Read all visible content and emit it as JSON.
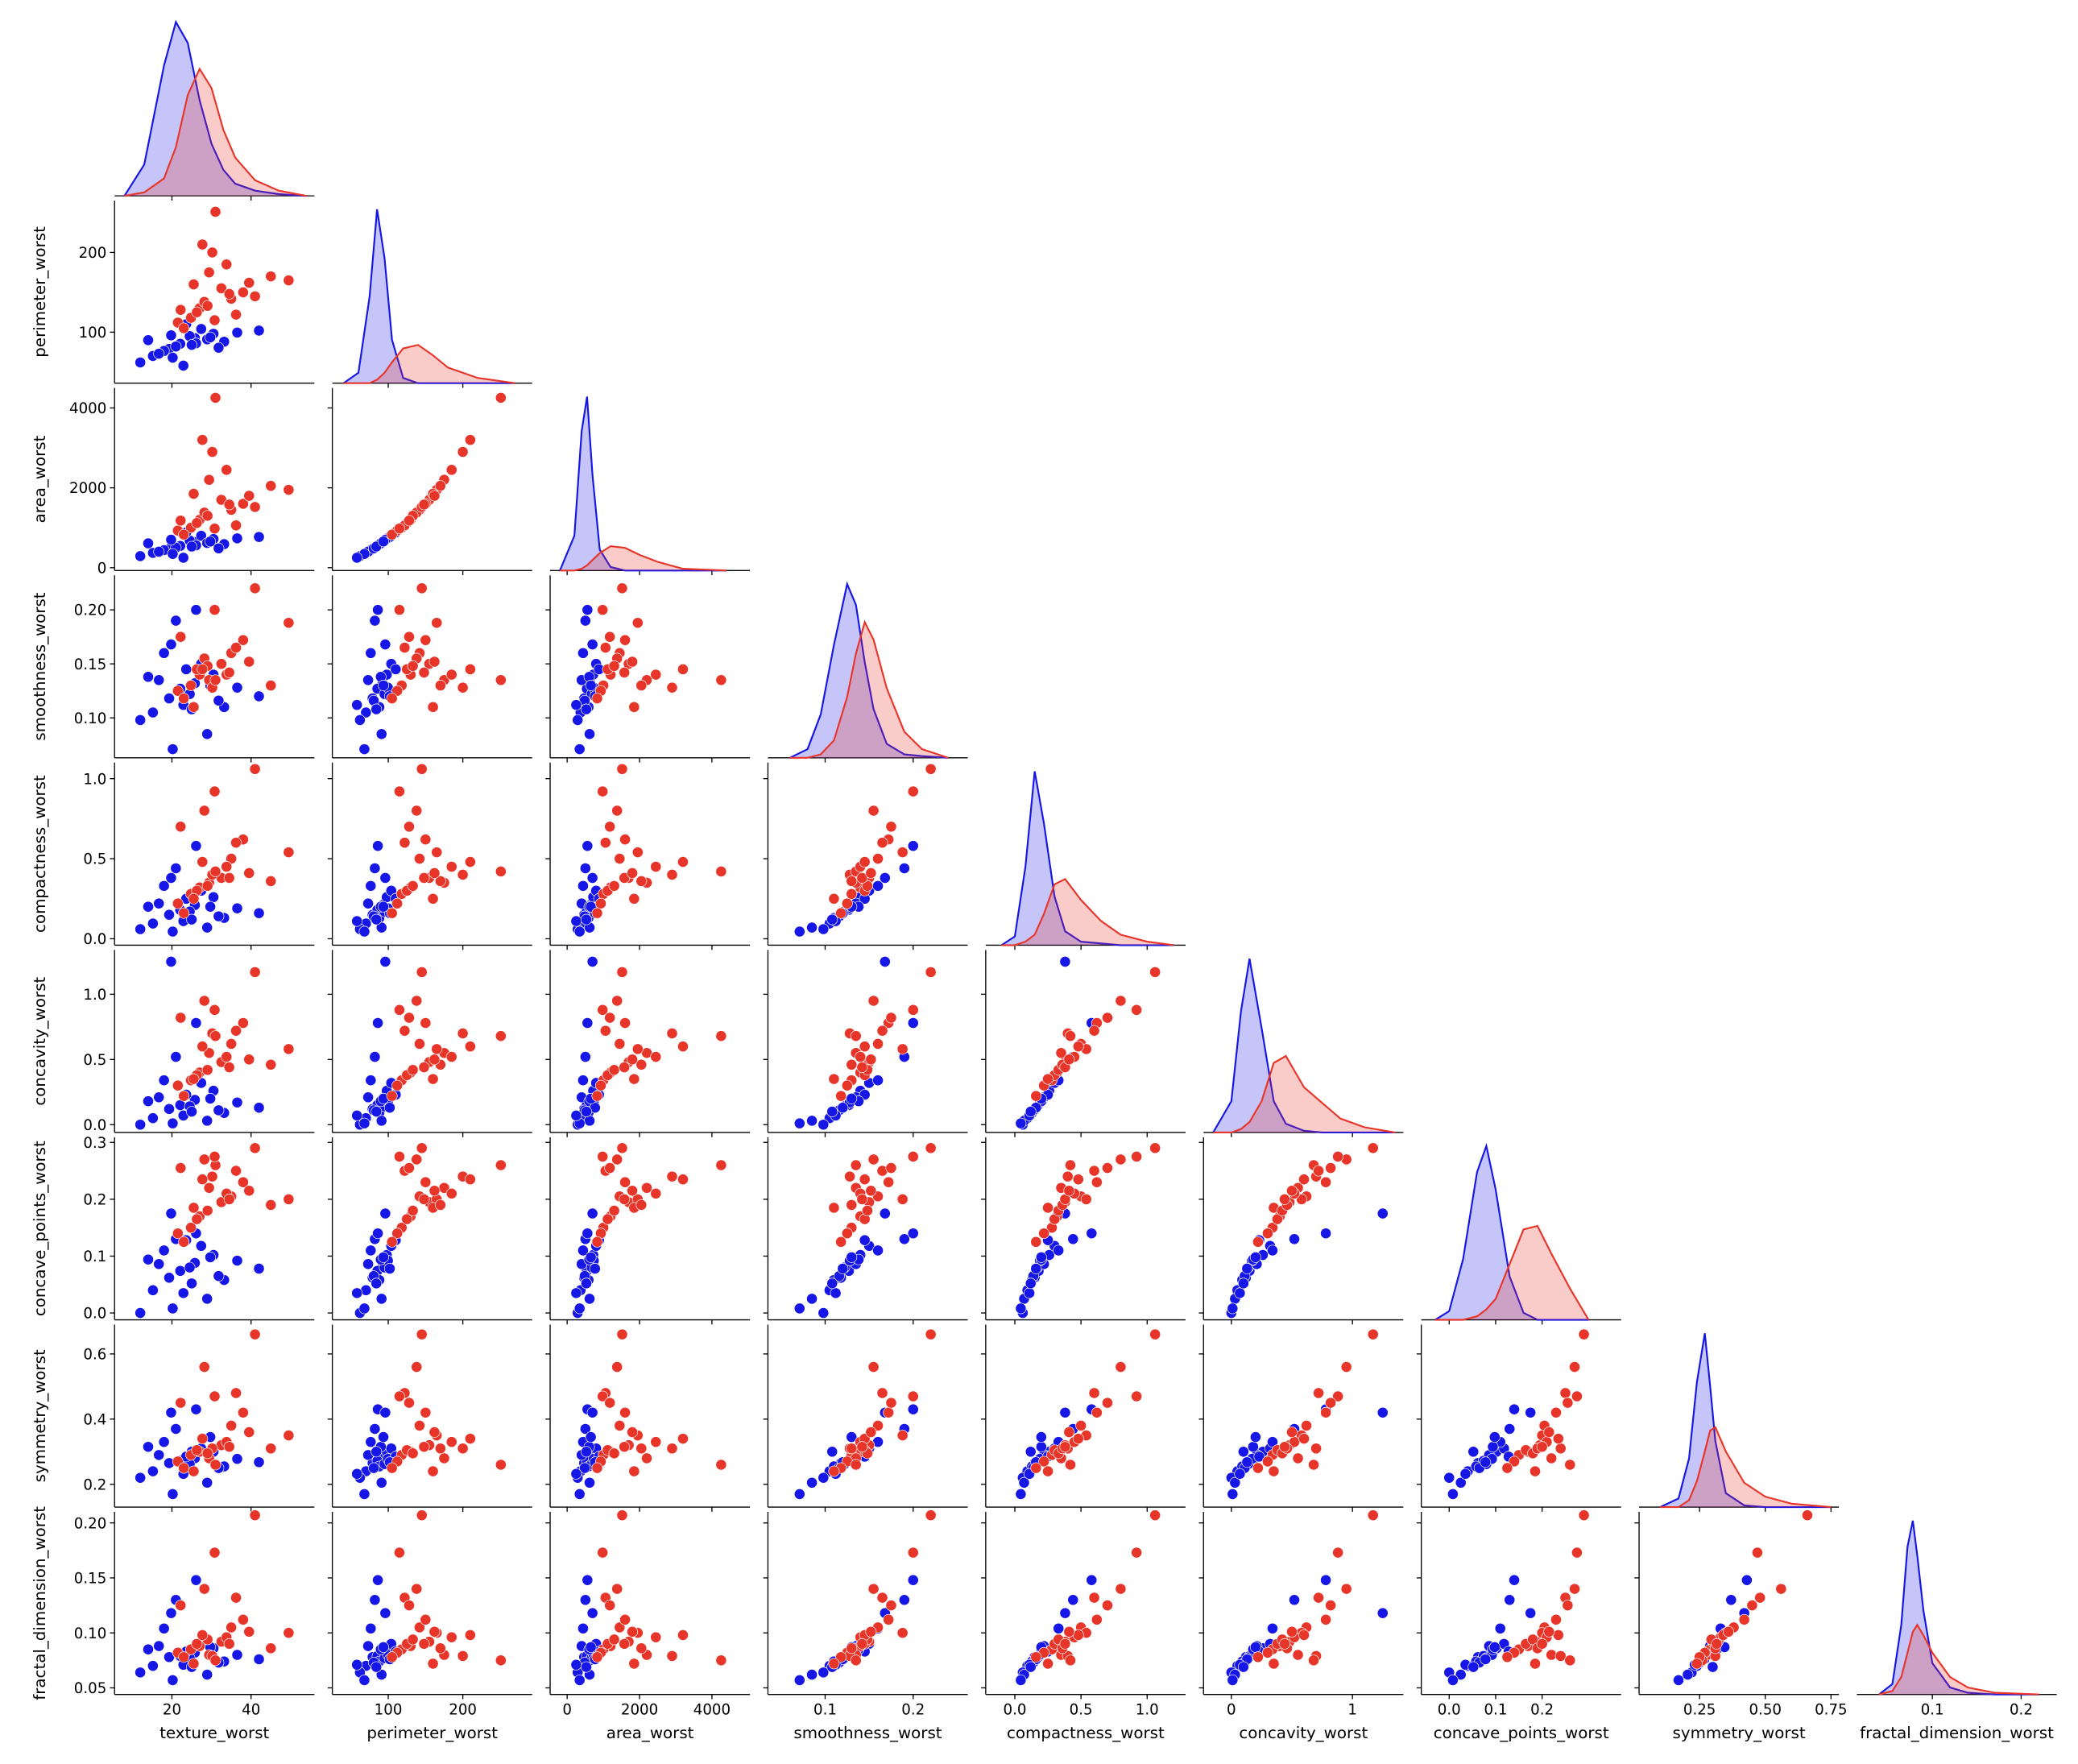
{
  "chart_data": {
    "type": "pairplot",
    "variables": [
      {
        "name": "texture_worst",
        "xlim": [
          5.5,
          56
        ],
        "xticks": [
          20,
          40
        ],
        "kde_x": [
          8,
          13,
          18,
          21,
          24,
          27,
          30,
          33,
          36,
          41,
          47,
          54
        ],
        "kde_ylim": [
          0,
          105
        ]
      },
      {
        "name": "perimeter_worst",
        "xlim": [
          25,
          293
        ],
        "xticks": [
          100,
          200
        ],
        "ylim": [
          36,
          265
        ],
        "yticks": [
          100,
          200
        ],
        "kde_x": [
          40,
          60,
          75,
          85,
          95,
          105,
          120,
          140,
          160,
          180,
          220,
          270
        ],
        "kde_ylim": [
          0,
          105
        ]
      },
      {
        "name": "area_worst",
        "xlim": [
          -470,
          5050
        ],
        "xticks": [
          0,
          2000,
          4000
        ],
        "ylim": [
          -70,
          4500
        ],
        "yticks": [
          0,
          2000,
          4000
        ],
        "kde_x": [
          -200,
          200,
          400,
          550,
          700,
          900,
          1200,
          1600,
          2000,
          2500,
          3200,
          4400
        ],
        "kde_ylim": [
          0,
          105
        ]
      },
      {
        "name": "smoothness_worst",
        "xlim": [
          0.035,
          0.262
        ],
        "xticks": [
          0.1,
          0.2
        ],
        "ylim": [
          0.063,
          0.232
        ],
        "yticks": [
          {
            "value": 0.1,
            "label": "0.10"
          },
          0.15,
          {
            "value": 0.2,
            "label": "0.20"
          }
        ],
        "kde_x": [
          0.06,
          0.08,
          0.095,
          0.11,
          0.125,
          0.135,
          0.145,
          0.155,
          0.17,
          0.19,
          0.21,
          0.24
        ],
        "kde_ylim": [
          0,
          105
        ]
      },
      {
        "name": "compactness_worst",
        "xlim": [
          -0.22,
          1.29
        ],
        "xticks": [
          {
            "value": 0,
            "label": "0.0"
          },
          0.5,
          {
            "value": 1,
            "label": "1.0"
          }
        ],
        "ylim": [
          -0.04,
          1.1
        ],
        "yticks": [
          {
            "value": 0,
            "label": "0.0"
          },
          0.5,
          {
            "value": 1,
            "label": "1.0"
          }
        ],
        "kde_x": [
          -0.1,
          0.0,
          0.08,
          0.15,
          0.22,
          0.3,
          0.38,
          0.5,
          0.65,
          0.8,
          1.0,
          1.2
        ],
        "kde_ylim": [
          0,
          105
        ]
      },
      {
        "name": "concavity_worst",
        "xlim": [
          -0.23,
          1.42
        ],
        "xticks": [
          0,
          1
        ],
        "ylim": [
          -0.06,
          1.34
        ],
        "yticks": [
          {
            "value": 0,
            "label": "0.0"
          },
          0.5,
          {
            "value": 1,
            "label": "1.0"
          }
        ],
        "kde_x": [
          -0.15,
          0.0,
          0.08,
          0.15,
          0.25,
          0.35,
          0.45,
          0.6,
          0.75,
          0.9,
          1.1,
          1.35
        ],
        "kde_ylim": [
          0,
          105
        ]
      },
      {
        "name": "concave_points_worst",
        "xlim": [
          -0.06,
          0.37
        ],
        "xticks": [
          {
            "value": 0,
            "label": "0.0"
          },
          0.1,
          0.2
        ],
        "ylim": [
          -0.012,
          0.309
        ],
        "yticks": [
          {
            "value": 0,
            "label": "0.0"
          },
          0.1,
          0.2,
          0.3
        ],
        "kde_x": [
          -0.03,
          0.0,
          0.03,
          0.06,
          0.08,
          0.1,
          0.13,
          0.16,
          0.19,
          0.22,
          0.26,
          0.3
        ],
        "kde_ylim": [
          0,
          105
        ]
      },
      {
        "name": "symmetry_worst",
        "xlim": [
          0.02,
          0.78
        ],
        "xticks": [
          0.25,
          {
            "value": 0.5,
            "label": "0.50"
          },
          0.75
        ],
        "ylim": [
          0.13,
          0.69
        ],
        "yticks": [
          0.2,
          0.4,
          0.6
        ],
        "kde_x": [
          0.1,
          0.17,
          0.21,
          0.24,
          0.27,
          0.29,
          0.31,
          0.35,
          0.42,
          0.5,
          0.6,
          0.75
        ],
        "kde_ylim": [
          0,
          105
        ]
      },
      {
        "name": "fractal_dimension_worst",
        "xlim": [
          0.015,
          0.24
        ],
        "xticks": [
          0.1,
          0.2
        ],
        "ylim": [
          0.044,
          0.21
        ],
        "yticks": [
          0.05,
          {
            "value": 0.1,
            "label": "0.10"
          },
          0.15,
          {
            "value": 0.2,
            "label": "0.20"
          }
        ],
        "kde_x": [
          0.04,
          0.055,
          0.065,
          0.072,
          0.078,
          0.083,
          0.09,
          0.1,
          0.12,
          0.14,
          0.17,
          0.22
        ],
        "kde_ylim": [
          0,
          105
        ]
      }
    ],
    "series": [
      {
        "color": "#1616e6",
        "samples": [
          [
            19.3,
            79.0,
            470,
            0.118,
            0.15,
            0.12,
            0.062,
            0.265,
            0.078
          ],
          [
            25.8,
            92.5,
            640,
            0.132,
            0.21,
            0.19,
            0.088,
            0.28,
            0.082
          ],
          [
            15.2,
            70.1,
            370,
            0.105,
            0.095,
            0.05,
            0.04,
            0.24,
            0.07
          ],
          [
            30.5,
            98.0,
            720,
            0.14,
            0.26,
            0.26,
            0.102,
            0.3,
            0.086
          ],
          [
            22.1,
            85.4,
            545,
            0.127,
            0.18,
            0.15,
            0.074,
            0.272,
            0.079
          ],
          [
            12.0,
            62.0,
            290,
            0.098,
            0.06,
            0.0,
            0.0,
            0.22,
            0.064
          ],
          [
            27.4,
            104.0,
            800,
            0.15,
            0.3,
            0.32,
            0.118,
            0.31,
            0.09
          ],
          [
            33.2,
            88.0,
            590,
            0.11,
            0.13,
            0.09,
            0.058,
            0.255,
            0.074
          ],
          [
            18.0,
            76.5,
            440,
            0.16,
            0.33,
            0.34,
            0.11,
            0.33,
            0.104
          ],
          [
            24.5,
            95.0,
            680,
            0.122,
            0.17,
            0.14,
            0.08,
            0.262,
            0.077
          ],
          [
            21.0,
            82.0,
            505,
            0.19,
            0.44,
            0.52,
            0.13,
            0.37,
            0.13
          ],
          [
            28.9,
            91.0,
            620,
            0.085,
            0.07,
            0.03,
            0.025,
            0.205,
            0.062
          ],
          [
            16.7,
            73.0,
            400,
            0.135,
            0.22,
            0.21,
            0.086,
            0.29,
            0.088
          ],
          [
            36.5,
            99.5,
            735,
            0.128,
            0.19,
            0.17,
            0.092,
            0.278,
            0.08
          ],
          [
            23.6,
            110.0,
            880,
            0.145,
            0.25,
            0.23,
            0.128,
            0.285,
            0.083
          ],
          [
            20.2,
            68.0,
            345,
            0.071,
            0.045,
            0.01,
            0.008,
            0.17,
            0.057
          ],
          [
            26.1,
            86.0,
            560,
            0.2,
            0.58,
            0.78,
            0.14,
            0.43,
            0.148
          ],
          [
            31.8,
            80.5,
            485,
            0.116,
            0.14,
            0.11,
            0.065,
            0.25,
            0.073
          ],
          [
            14.0,
            90.0,
            610,
            0.138,
            0.2,
            0.18,
            0.094,
            0.315,
            0.085
          ],
          [
            42.0,
            102.0,
            770,
            0.12,
            0.16,
            0.13,
            0.078,
            0.268,
            0.076
          ],
          [
            22.9,
            58.0,
            250,
            0.112,
            0.11,
            0.07,
            0.035,
            0.232,
            0.071
          ],
          [
            19.8,
            96.0,
            700,
            0.168,
            0.38,
            1.25,
            0.175,
            0.42,
            0.118
          ],
          [
            25.0,
            84.0,
            530,
            0.108,
            0.12,
            0.1,
            0.052,
            0.3,
            0.069
          ],
          [
            29.7,
            93.5,
            655,
            0.13,
            0.2,
            0.2,
            0.098,
            0.345,
            0.087
          ]
        ],
        "kde": [
          [
            0,
            18,
            75,
            100,
            88,
            55,
            30,
            15,
            7,
            3,
            1,
            0
          ],
          [
            0,
            6,
            50,
            100,
            72,
            25,
            3,
            0,
            0,
            0,
            0,
            0
          ],
          [
            0,
            20,
            80,
            100,
            55,
            12,
            2,
            0,
            0,
            0,
            0,
            0
          ],
          [
            0,
            5,
            25,
            65,
            100,
            88,
            55,
            28,
            8,
            2,
            1,
            0
          ],
          [
            0,
            5,
            45,
            100,
            70,
            28,
            8,
            2,
            1,
            0,
            0,
            0
          ],
          [
            0,
            18,
            70,
            100,
            60,
            18,
            5,
            1,
            0,
            0,
            0,
            0
          ],
          [
            0,
            5,
            35,
            85,
            100,
            75,
            25,
            4,
            0,
            0,
            0,
            0
          ],
          [
            0,
            5,
            28,
            72,
            100,
            70,
            38,
            8,
            1,
            0,
            0,
            0
          ],
          [
            0,
            6,
            40,
            85,
            100,
            80,
            48,
            18,
            4,
            1,
            0,
            0
          ]
        ]
      },
      {
        "color": "#e8352a",
        "samples": [
          [
            27.0,
            130.0,
            1200,
            0.14,
            0.32,
            0.4,
            0.17,
            0.3,
            0.088
          ],
          [
            32.5,
            155.0,
            1700,
            0.15,
            0.38,
            0.48,
            0.195,
            0.32,
            0.092
          ],
          [
            24.8,
            118.0,
            1000,
            0.13,
            0.28,
            0.34,
            0.15,
            0.29,
            0.085
          ],
          [
            29.4,
            175.0,
            2200,
            0.135,
            0.35,
            0.55,
            0.22,
            0.28,
            0.08
          ],
          [
            35.0,
            142.0,
            1450,
            0.16,
            0.5,
            0.62,
            0.205,
            0.38,
            0.105
          ],
          [
            21.5,
            112.0,
            930,
            0.125,
            0.22,
            0.3,
            0.14,
            0.27,
            0.082
          ],
          [
            30.2,
            200.0,
            2900,
            0.128,
            0.4,
            0.7,
            0.24,
            0.31,
            0.079
          ],
          [
            38.0,
            150.0,
            1600,
            0.172,
            0.62,
            0.78,
            0.23,
            0.42,
            0.112
          ],
          [
            26.3,
            125.0,
            1120,
            0.145,
            0.3,
            0.38,
            0.165,
            0.305,
            0.09
          ],
          [
            31.0,
            251.0,
            4254,
            0.135,
            0.42,
            0.68,
            0.26,
            0.26,
            0.075
          ],
          [
            49.5,
            165.0,
            1950,
            0.188,
            0.54,
            0.58,
            0.2,
            0.35,
            0.1
          ],
          [
            28.2,
            138.0,
            1380,
            0.155,
            0.8,
            0.95,
            0.27,
            0.56,
            0.14
          ],
          [
            23.0,
            105.0,
            830,
            0.118,
            0.16,
            0.22,
            0.125,
            0.25,
            0.078
          ],
          [
            33.8,
            185.0,
            2450,
            0.14,
            0.45,
            0.52,
            0.21,
            0.33,
            0.096
          ],
          [
            41.0,
            145.0,
            1520,
            0.22,
            1.06,
            1.17,
            0.29,
            0.66,
            0.207
          ],
          [
            25.5,
            160.0,
            1850,
            0.11,
            0.25,
            0.35,
            0.185,
            0.24,
            0.072
          ],
          [
            36.2,
            122.0,
            1060,
            0.165,
            0.6,
            0.72,
            0.25,
            0.48,
            0.132
          ],
          [
            29.0,
            133.0,
            1300,
            0.148,
            0.33,
            0.42,
            0.18,
            0.295,
            0.094
          ],
          [
            45.0,
            170.0,
            2050,
            0.13,
            0.36,
            0.46,
            0.19,
            0.31,
            0.086
          ],
          [
            30.8,
            115.0,
            980,
            0.2,
            0.92,
            0.88,
            0.275,
            0.47,
            0.173
          ],
          [
            27.7,
            210.0,
            3200,
            0.145,
            0.48,
            0.6,
            0.235,
            0.34,
            0.098
          ],
          [
            34.5,
            148.0,
            1580,
            0.142,
            0.38,
            0.44,
            0.2,
            0.315,
            0.09
          ],
          [
            22.2,
            128.0,
            1180,
            0.175,
            0.7,
            0.82,
            0.255,
            0.45,
            0.125
          ],
          [
            39.5,
            162.0,
            1800,
            0.152,
            0.41,
            0.5,
            0.215,
            0.36,
            0.101
          ]
        ],
        "kde": [
          [
            0,
            2,
            10,
            28,
            58,
            73,
            62,
            38,
            22,
            9,
            3,
            0
          ],
          [
            0,
            0,
            0,
            2,
            6,
            12,
            20,
            22,
            16,
            9,
            3,
            0
          ],
          [
            0,
            0,
            1,
            3,
            6,
            10,
            14,
            13,
            9,
            5,
            1,
            0
          ],
          [
            0,
            0,
            2,
            10,
            35,
            60,
            78,
            68,
            40,
            15,
            5,
            0
          ],
          [
            0,
            0,
            2,
            6,
            18,
            35,
            38,
            26,
            14,
            6,
            2,
            0
          ],
          [
            0,
            0,
            2,
            6,
            18,
            40,
            44,
            26,
            17,
            8,
            3,
            0
          ],
          [
            0,
            0,
            0,
            2,
            6,
            12,
            32,
            52,
            54,
            38,
            18,
            0
          ],
          [
            0,
            0,
            4,
            15,
            32,
            44,
            46,
            32,
            14,
            6,
            2,
            0
          ],
          [
            0,
            2,
            10,
            24,
            36,
            40,
            34,
            24,
            10,
            4,
            1,
            0
          ]
        ]
      }
    ]
  }
}
